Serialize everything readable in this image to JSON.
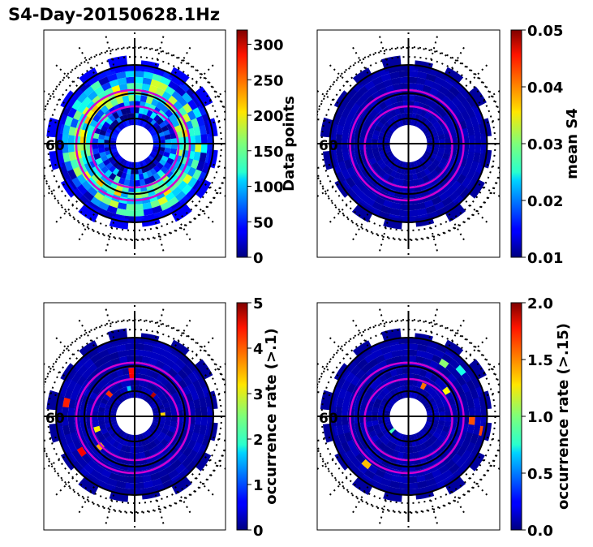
{
  "title": "S4-Day-20150628.1Hz",
  "chart_data": [
    {
      "type": "heatmap",
      "projection": "polar",
      "colormap": "jet",
      "colorbar": {
        "label": "Data points",
        "range": [
          0,
          320
        ],
        "ticks": [
          "0",
          "50",
          "100",
          "150",
          "200",
          "250",
          "300"
        ],
        "tick_values": [
          0,
          50,
          100,
          150,
          200,
          250,
          300
        ]
      },
      "polar_label": "60",
      "field": "data_points",
      "mean_level": 160
    },
    {
      "type": "heatmap",
      "projection": "polar",
      "colormap": "jet",
      "colorbar": {
        "label": "mean S4",
        "range": [
          0.01,
          0.05
        ],
        "ticks": [
          "0.01",
          "0.02",
          "0.03",
          "0.04",
          "0.05"
        ],
        "tick_values": [
          0.01,
          0.02,
          0.03,
          0.04,
          0.05
        ]
      },
      "polar_label": "60",
      "field": "mean_s4",
      "background_value": 0.01
    },
    {
      "type": "heatmap",
      "projection": "polar",
      "colormap": "jet",
      "colorbar": {
        "label": "occurrence rate (>.1)",
        "range": [
          0,
          5
        ],
        "ticks": [
          "0",
          "1",
          "2",
          "3",
          "4",
          "5"
        ],
        "tick_values": [
          0,
          1,
          2,
          3,
          4,
          5
        ]
      },
      "polar_label": "60",
      "field": "occurrence_rate_0.1",
      "background_value": 0
    },
    {
      "type": "heatmap",
      "projection": "polar",
      "colormap": "jet",
      "colorbar": {
        "label": "occurrence rate (>.15)",
        "range": [
          0,
          2
        ],
        "ticks": [
          "0.0",
          "0.5",
          "1.0",
          "1.5",
          "2.0"
        ],
        "tick_values": [
          0,
          0.5,
          1,
          1.5,
          2
        ]
      },
      "polar_label": "60",
      "field": "occurrence_rate_0.15",
      "background_value": 0
    }
  ]
}
